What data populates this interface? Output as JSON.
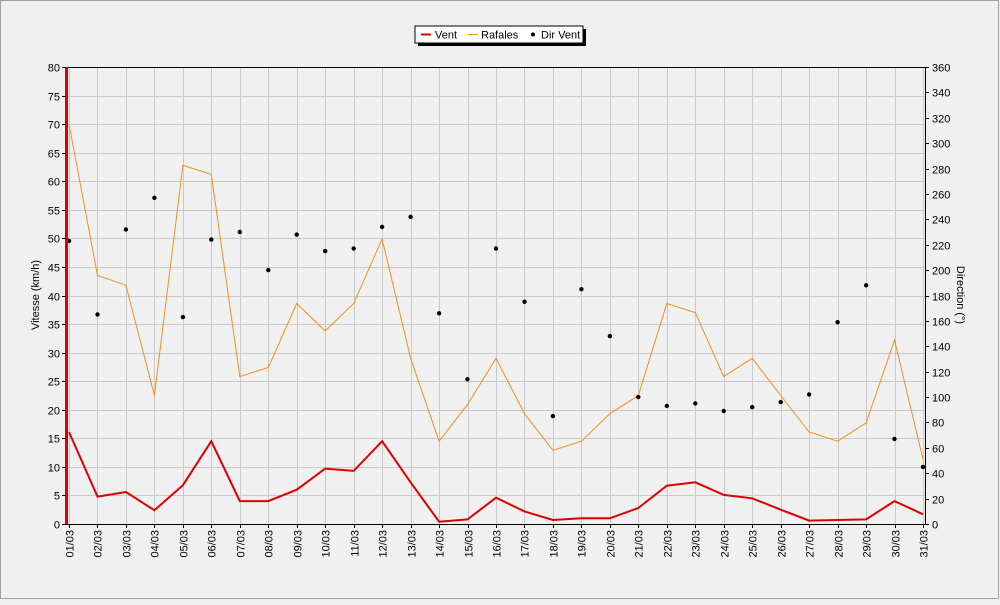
{
  "chart_data": {
    "type": "line",
    "xlabel": "",
    "ylabel": "Vitesse (km/h)",
    "y2label": "Direction (°)",
    "ylim": [
      0,
      80
    ],
    "y2lim": [
      0,
      360
    ],
    "yticks": [
      0,
      5,
      10,
      15,
      20,
      25,
      30,
      35,
      40,
      45,
      50,
      55,
      60,
      65,
      70,
      75,
      80
    ],
    "y2ticks": [
      0,
      20,
      40,
      60,
      80,
      100,
      120,
      140,
      160,
      180,
      200,
      220,
      240,
      260,
      280,
      300,
      320,
      340,
      360
    ],
    "grid": true,
    "legend_position": "top-center",
    "categories": [
      "01/03",
      "02/03",
      "03/03",
      "04/03",
      "05/03",
      "06/03",
      "07/03",
      "08/03",
      "09/03",
      "10/03",
      "11/03",
      "12/03",
      "13/03",
      "14/03",
      "15/03",
      "16/03",
      "17/03",
      "18/03",
      "19/03",
      "20/03",
      "21/03",
      "22/03",
      "23/03",
      "24/03",
      "25/03",
      "26/03",
      "27/03",
      "28/03",
      "29/03",
      "30/03",
      "31/03"
    ],
    "series": [
      {
        "name": "Vent",
        "type": "line",
        "axis": "left",
        "color": "#dd0000",
        "values": [
          16.1,
          4.8,
          5.6,
          2.4,
          6.8,
          14.5,
          4.0,
          4.0,
          6.0,
          9.7,
          9.3,
          14.5,
          7.3,
          0.4,
          0.8,
          4.6,
          2.2,
          0.7,
          1.0,
          1.0,
          2.8,
          6.7,
          7.3,
          5.1,
          4.5,
          2.5,
          0.6,
          0.7,
          0.8,
          4.0,
          1.7
        ]
      },
      {
        "name": "Rafales",
        "type": "line",
        "axis": "left",
        "color": "#f0901c",
        "values": [
          70.0,
          43.5,
          41.8,
          22.5,
          62.8,
          61.2,
          25.8,
          27.4,
          38.6,
          33.8,
          38.6,
          49.9,
          29.0,
          14.5,
          20.9,
          29.0,
          19.3,
          12.9,
          14.5,
          19.3,
          22.5,
          38.6,
          37.0,
          25.8,
          29.0,
          22.5,
          16.1,
          14.5,
          17.7,
          32.2,
          11.3
        ]
      },
      {
        "name": "Dir Vent",
        "type": "scatter",
        "axis": "right",
        "color": "#000000",
        "values": [
          223,
          165,
          232,
          257,
          163,
          224,
          230,
          200,
          228,
          215,
          217,
          234,
          242,
          166,
          114,
          217,
          175,
          85,
          185,
          148,
          100,
          93,
          95,
          89,
          92,
          96,
          102,
          159,
          188,
          67,
          45
        ]
      }
    ]
  }
}
